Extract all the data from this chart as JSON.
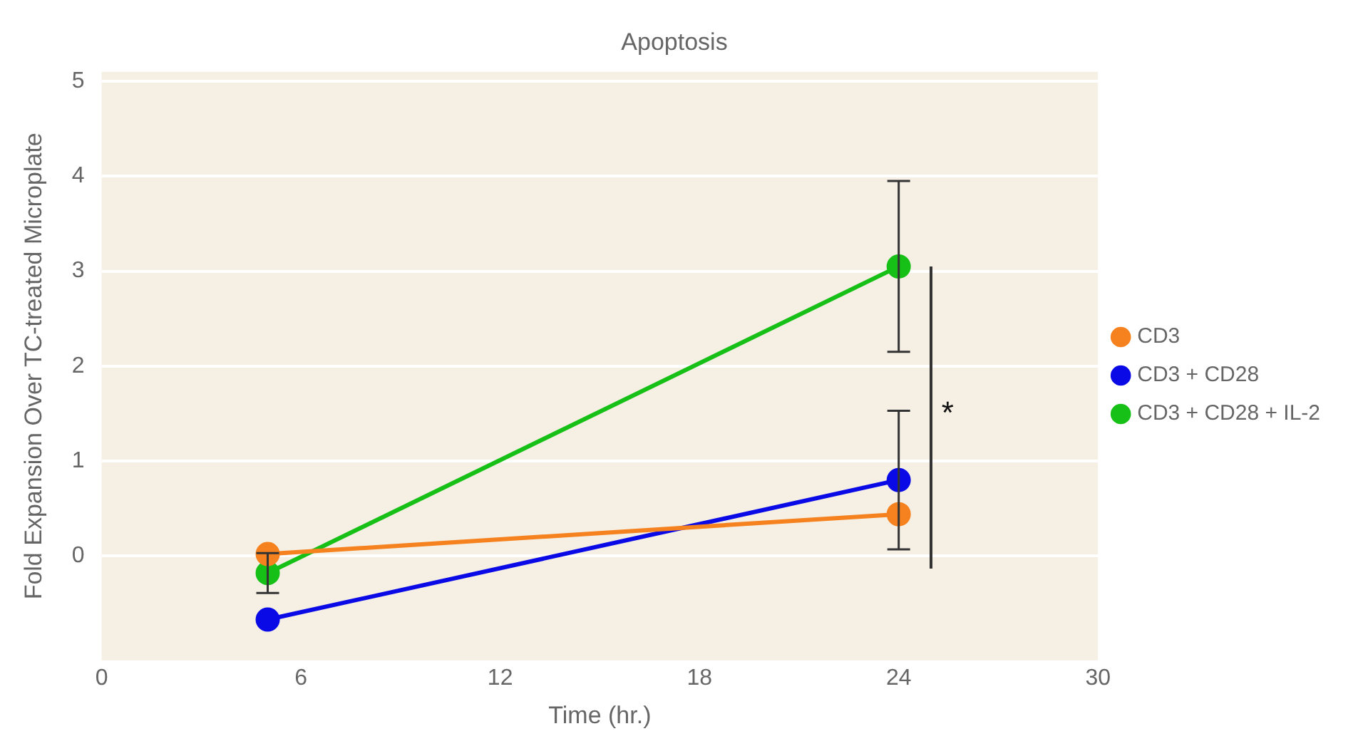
{
  "chart_data": {
    "type": "line",
    "title": "Apoptosis",
    "xlabel": "Time (hr.)",
    "ylabel": "Fold Expansion Over TC-treated Microplate",
    "x": [
      5,
      24
    ],
    "series": [
      {
        "name": "CD3",
        "color": "#f5821f",
        "values": [
          0.02,
          0.44
        ]
      },
      {
        "name": "CD3 + CD28",
        "color": "#0a0ae6",
        "values": [
          -0.67,
          0.8
        ],
        "errors": [
          null,
          0.73
        ]
      },
      {
        "name": "CD3 + CD28 + IL-2",
        "color": "#16c016",
        "values": [
          -0.18,
          3.05
        ],
        "errors": [
          0.21,
          0.9
        ]
      }
    ],
    "xlim": [
      0,
      30
    ],
    "xticks": [
      0,
      6,
      12,
      18,
      24,
      30
    ],
    "ylim": [
      -1.1,
      5.1
    ],
    "yticks": [
      0,
      1,
      2,
      3,
      4,
      5
    ],
    "grid": "y",
    "legend": "right",
    "marker": "circle",
    "line_style": "solid",
    "annotations": [
      "*"
    ]
  }
}
